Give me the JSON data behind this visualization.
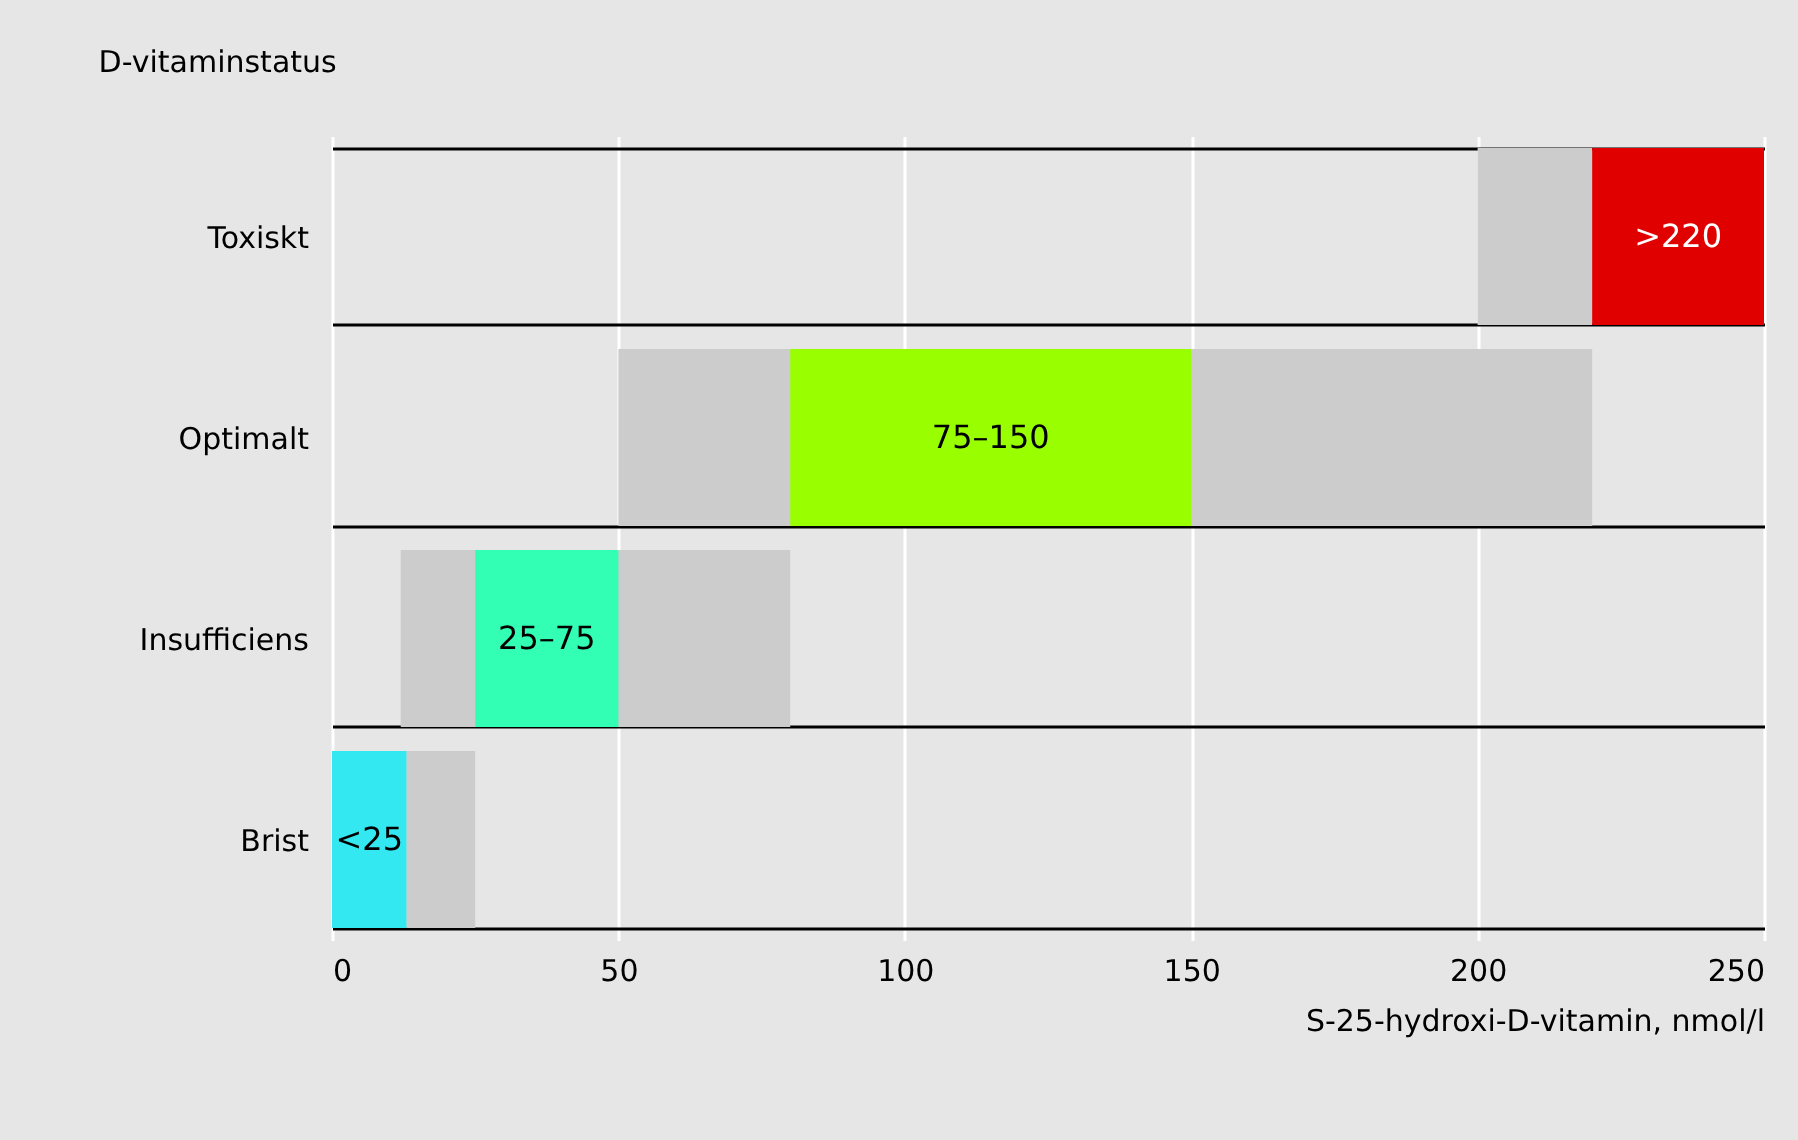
{
  "chart_data": {
    "type": "bar",
    "orientation": "horizontal",
    "title": "D-vitaminstatus",
    "xlabel": "S-25-hydroxi-D-vitamin, nmol/l",
    "categories": [
      "Toxiskt",
      "Optimalt",
      "Insufficiens",
      "Brist"
    ],
    "series": [
      {
        "color": "#cccccc",
        "base": [
          200,
          50,
          12,
          13
        ],
        "values": [
          20,
          170,
          68,
          12
        ]
      },
      {
        "colors": [
          "#e00000",
          "#99ff00",
          "#33ffb4",
          "#33e8f0"
        ],
        "base": [
          220,
          80,
          25,
          0
        ],
        "values": [
          30,
          70,
          25,
          13
        ],
        "value_labels": [
          ">220",
          "75–150",
          "25–75",
          "<25"
        ]
      }
    ],
    "xlim": [
      0,
      250
    ],
    "xticks": [
      0,
      50,
      100,
      150,
      200,
      250
    ],
    "grid": true
  }
}
